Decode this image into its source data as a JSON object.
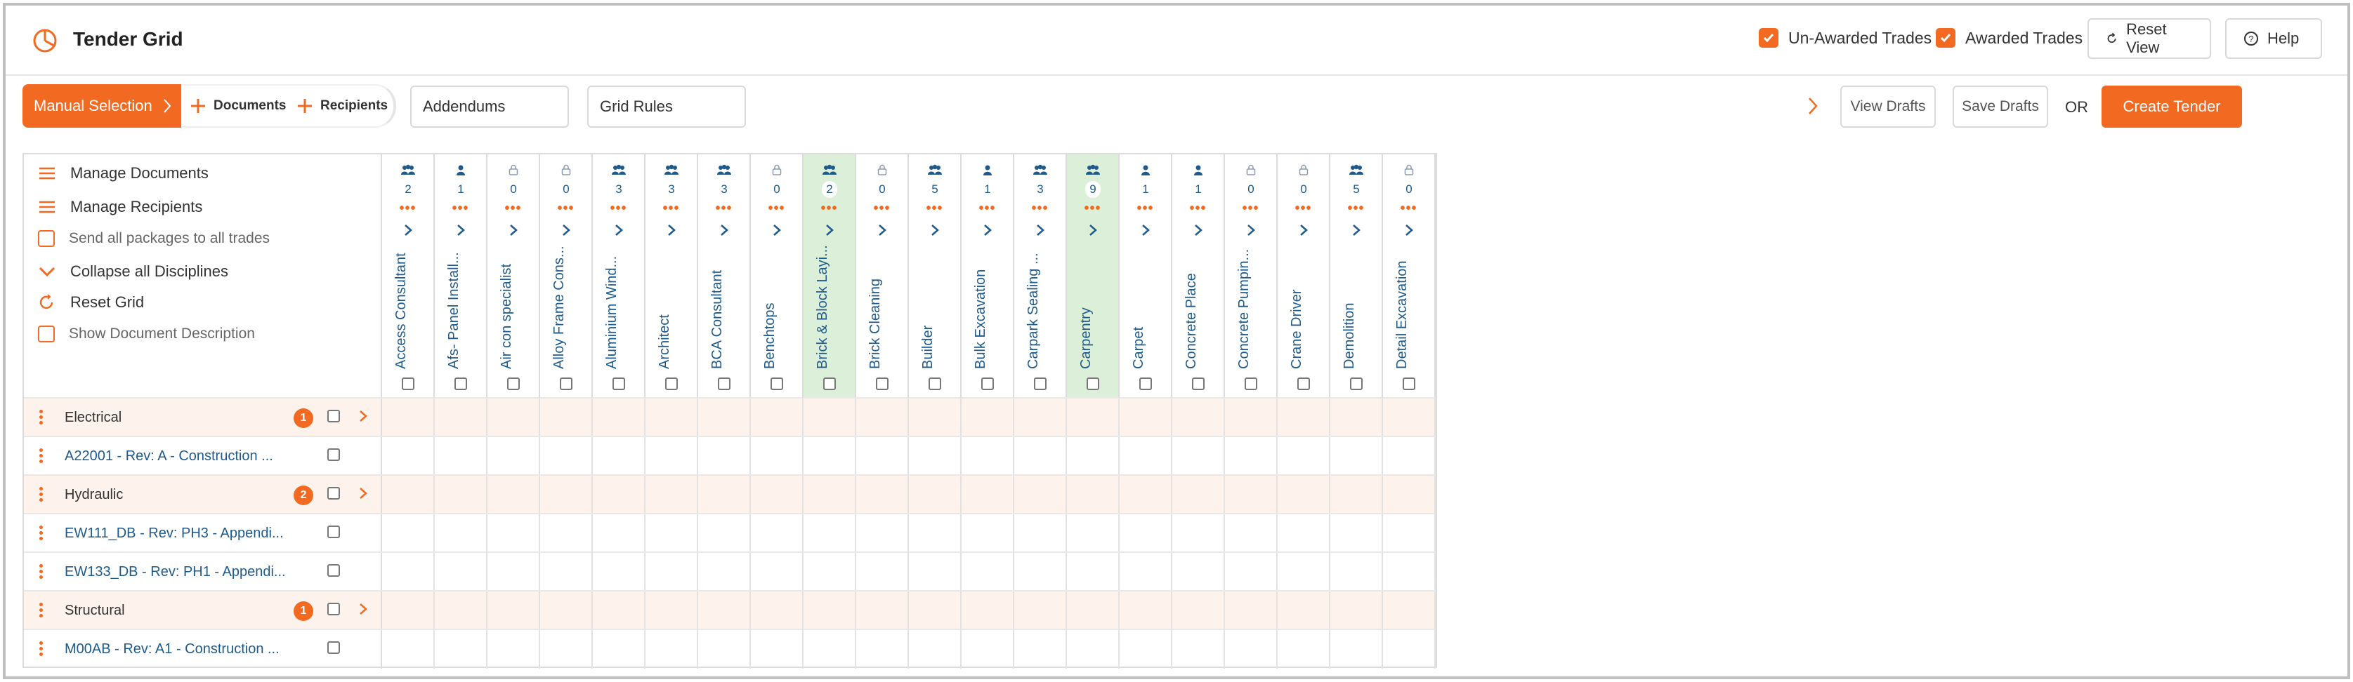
{
  "header": {
    "title": "Tender Grid",
    "unawarded_label": "Un-Awarded Trades",
    "awarded_label": "Awarded Trades",
    "reset_view_label": "Reset View",
    "help_label": "Help"
  },
  "toolbar": {
    "manual_selection": "Manual Selection",
    "documents_tab": "Documents",
    "recipients_tab": "Recipients",
    "addendums": "Addendums",
    "grid_rules": "Grid Rules",
    "view_drafts": "View Drafts",
    "save_drafts": "Save Drafts",
    "or": "OR",
    "create_tender": "Create Tender"
  },
  "side_panel": {
    "manage_documents": "Manage Documents",
    "manage_recipients": "Manage Recipients",
    "send_all": "Send all packages to all trades",
    "collapse_all": "Collapse all Disciplines",
    "reset_grid": "Reset Grid",
    "show_description": "Show Document Description"
  },
  "trades": [
    {
      "name": "Access Consultant",
      "count": "2",
      "icon": "group-icon",
      "highlight": false
    },
    {
      "name": "Afs- Panel Install...",
      "count": "1",
      "icon": "person-icon",
      "highlight": false
    },
    {
      "name": "Air con specialist",
      "count": "0",
      "icon": "lock-icon",
      "highlight": false
    },
    {
      "name": "Alloy Frame Cons...",
      "count": "0",
      "icon": "lock-icon",
      "highlight": false
    },
    {
      "name": "Aluminium Wind...",
      "count": "3",
      "icon": "group-icon",
      "highlight": false
    },
    {
      "name": "Architect",
      "count": "3",
      "icon": "group-icon",
      "highlight": false
    },
    {
      "name": "BCA Consultant",
      "count": "3",
      "icon": "group-icon",
      "highlight": false
    },
    {
      "name": "Benchtops",
      "count": "0",
      "icon": "lock-icon",
      "highlight": false
    },
    {
      "name": "Brick & Block Layi...",
      "count": "2",
      "icon": "group-icon",
      "highlight": true
    },
    {
      "name": "Brick Cleaning",
      "count": "0",
      "icon": "lock-icon",
      "highlight": false
    },
    {
      "name": "Builder",
      "count": "5",
      "icon": "group-icon",
      "highlight": false
    },
    {
      "name": "Bulk Excavation",
      "count": "1",
      "icon": "person-icon",
      "highlight": false
    },
    {
      "name": "Carpark Sealing ...",
      "count": "3",
      "icon": "group-icon",
      "highlight": false
    },
    {
      "name": "Carpentry",
      "count": "9",
      "icon": "group-icon",
      "highlight": true
    },
    {
      "name": "Carpet",
      "count": "1",
      "icon": "person-icon",
      "highlight": false
    },
    {
      "name": "Concrete Place",
      "count": "1",
      "icon": "person-icon",
      "highlight": false
    },
    {
      "name": "Concrete Pumpin...",
      "count": "0",
      "icon": "lock-icon",
      "highlight": false
    },
    {
      "name": "Crane Driver",
      "count": "0",
      "icon": "lock-icon",
      "highlight": false
    },
    {
      "name": "Demolition",
      "count": "5",
      "icon": "group-icon",
      "highlight": false
    },
    {
      "name": "Detail Excavation",
      "count": "0",
      "icon": "lock-icon",
      "highlight": false
    }
  ],
  "rows": [
    {
      "type": "disc",
      "label": "Electrical",
      "badge": "1"
    },
    {
      "type": "doc",
      "label": "A22001 - Rev: A - Construction ..."
    },
    {
      "type": "disc",
      "label": "Hydraulic",
      "badge": "2"
    },
    {
      "type": "doc",
      "label": "EW111_DB - Rev: PH3 - Appendi..."
    },
    {
      "type": "doc",
      "label": "EW133_DB - Rev: PH1 - Appendi..."
    },
    {
      "type": "disc",
      "label": "Structural",
      "badge": "1"
    },
    {
      "type": "doc",
      "label": "M00AB - Rev: A1 - Construction ..."
    }
  ],
  "colors": {
    "accent": "#f26a21",
    "link": "#1e5a8c",
    "highlight": "#dcefd9",
    "row_tint": "#fdf3ec"
  }
}
